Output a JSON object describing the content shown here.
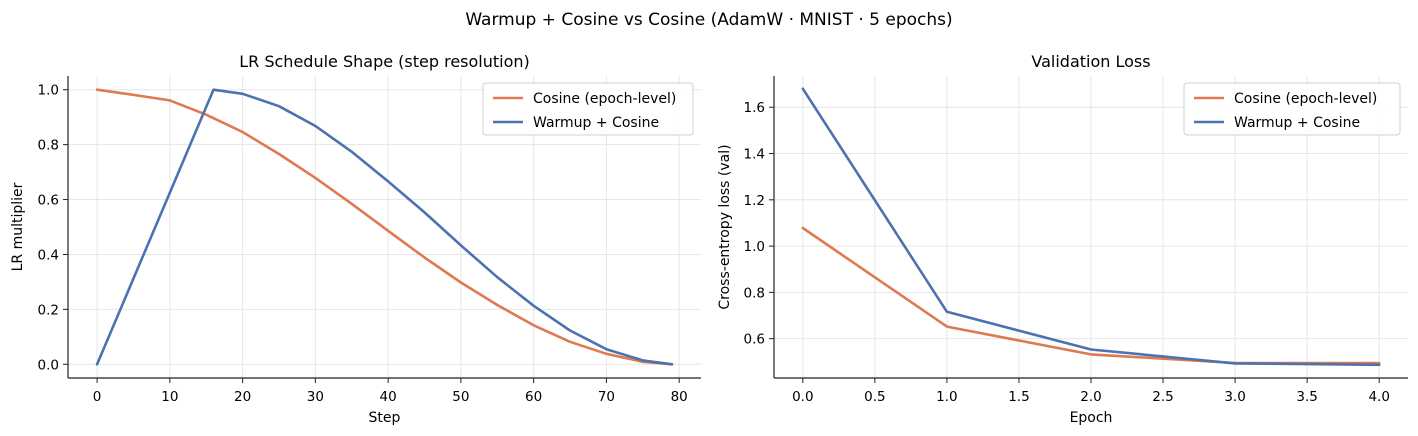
{
  "figure": {
    "suptitle": "Warmup + Cosine vs Cosine  (AdamW · MNIST · 5 epochs)"
  },
  "colors": {
    "cosine": "#dd7a50",
    "warmup": "#4c72b0",
    "grid": "#e6e6e6",
    "axis": "#222222"
  },
  "chart_data": [
    {
      "type": "line",
      "title": "LR Schedule Shape  (step resolution)",
      "xlabel": "Step",
      "ylabel": "LR multiplier",
      "xlim": [
        -4,
        83
      ],
      "ylim": [
        -0.05,
        1.05
      ],
      "xticks": [
        0,
        10,
        20,
        30,
        40,
        50,
        60,
        70,
        80
      ],
      "yticks": [
        0.0,
        0.2,
        0.4,
        0.6,
        0.8,
        1.0
      ],
      "xtick_labels": [
        "0",
        "10",
        "20",
        "30",
        "40",
        "50",
        "60",
        "70",
        "80"
      ],
      "ytick_labels": [
        "0.0",
        "0.2",
        "0.4",
        "0.6",
        "0.8",
        "1.0"
      ],
      "grid": true,
      "legend": "upper-right",
      "series": [
        {
          "name": "Cosine (epoch-level)",
          "color": "#dd7a50",
          "x": [
            0,
            5,
            10,
            15,
            20,
            25,
            30,
            35,
            40,
            45,
            50,
            55,
            60,
            65,
            70,
            75,
            79
          ],
          "y": [
            1.0,
            0.981,
            0.961,
            0.909,
            0.846,
            0.766,
            0.679,
            0.584,
            0.486,
            0.389,
            0.298,
            0.216,
            0.142,
            0.082,
            0.038,
            0.009,
            0.0
          ]
        },
        {
          "name": "Warmup + Cosine",
          "color": "#4c72b0",
          "x": [
            0,
            16,
            20,
            25,
            30,
            35,
            40,
            45,
            50,
            55,
            60,
            65,
            70,
            75,
            79
          ],
          "y": [
            0.0,
            1.0,
            0.985,
            0.94,
            0.868,
            0.774,
            0.666,
            0.553,
            0.433,
            0.317,
            0.213,
            0.123,
            0.055,
            0.014,
            0.0
          ]
        }
      ]
    },
    {
      "type": "line",
      "title": "Validation Loss",
      "xlabel": "Epoch",
      "ylabel": "Cross-entropy loss (val)",
      "xlim": [
        -0.2,
        4.2
      ],
      "ylim": [
        0.43,
        1.735
      ],
      "xticks": [
        0.0,
        0.5,
        1.0,
        1.5,
        2.0,
        2.5,
        3.0,
        3.5,
        4.0
      ],
      "yticks": [
        0.6,
        0.8,
        1.0,
        1.2,
        1.4,
        1.6
      ],
      "xtick_labels": [
        "0.0",
        "0.5",
        "1.0",
        "1.5",
        "2.0",
        "2.5",
        "3.0",
        "3.5",
        "4.0"
      ],
      "ytick_labels": [
        "0.6",
        "0.8",
        "1.0",
        "1.2",
        "1.4",
        "1.6"
      ],
      "grid": true,
      "legend": "upper-right",
      "series": [
        {
          "name": "Cosine (epoch-level)",
          "color": "#dd7a50",
          "x": [
            0,
            1,
            2,
            3,
            4
          ],
          "y": [
            1.078,
            0.652,
            0.532,
            0.495,
            0.495
          ]
        },
        {
          "name": "Warmup + Cosine",
          "color": "#4c72b0",
          "x": [
            0,
            1,
            2,
            3,
            4
          ],
          "y": [
            1.68,
            0.716,
            0.553,
            0.493,
            0.487
          ]
        }
      ]
    }
  ]
}
